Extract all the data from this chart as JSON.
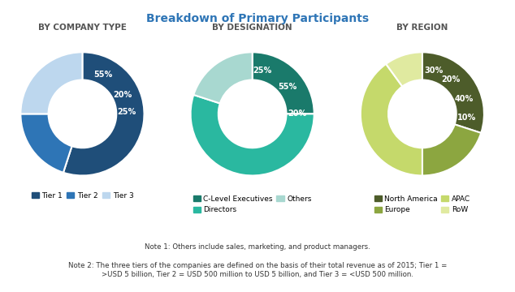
{
  "title": "Breakdown of Primary Participants",
  "title_color": "#2E75B6",
  "background_color": "#FFFFFF",
  "chart1_label": "BY COMPANY TYPE",
  "chart1_values": [
    55,
    20,
    25
  ],
  "chart1_labels": [
    "55%",
    "20%",
    "25%"
  ],
  "chart1_colors": [
    "#1F4E79",
    "#2E75B6",
    "#BDD7EE"
  ],
  "chart1_legend": [
    "Tier 1",
    "Tier 2",
    "Tier 3"
  ],
  "chart2_label": "BY DESIGNATION",
  "chart2_values": [
    25,
    55,
    20
  ],
  "chart2_labels": [
    "25%",
    "55%",
    "20%"
  ],
  "chart2_colors": [
    "#1A7A6B",
    "#2AB8A0",
    "#A8D8D0"
  ],
  "chart2_legend": [
    "C-Level Executives",
    "Directors",
    "Others"
  ],
  "chart3_label": "BY REGION",
  "chart3_values": [
    30,
    20,
    40,
    10
  ],
  "chart3_labels": [
    "30%",
    "20%",
    "40%",
    "10%"
  ],
  "chart3_colors": [
    "#4D5C2A",
    "#8CA640",
    "#C5D96B",
    "#E0EAA0"
  ],
  "chart3_legend": [
    "North America",
    "Europe",
    "APAC",
    "RoW"
  ],
  "note1": "Note 1: Others include sales, marketing, and product managers.",
  "note2": "Note 2: The three tiers of the companies are defined on the basis of their total revenue as of 2015; Tier 1 =\n>USD 5 billion, Tier 2 = USD 500 million to USD 5 billion, and Tier 3 = <USD 500 million.",
  "subtitle_fontsize": 7.5,
  "label_fontsize": 7,
  "legend_fontsize": 6.5,
  "pct_fontsize": 7,
  "note_fontsize": 6.2
}
